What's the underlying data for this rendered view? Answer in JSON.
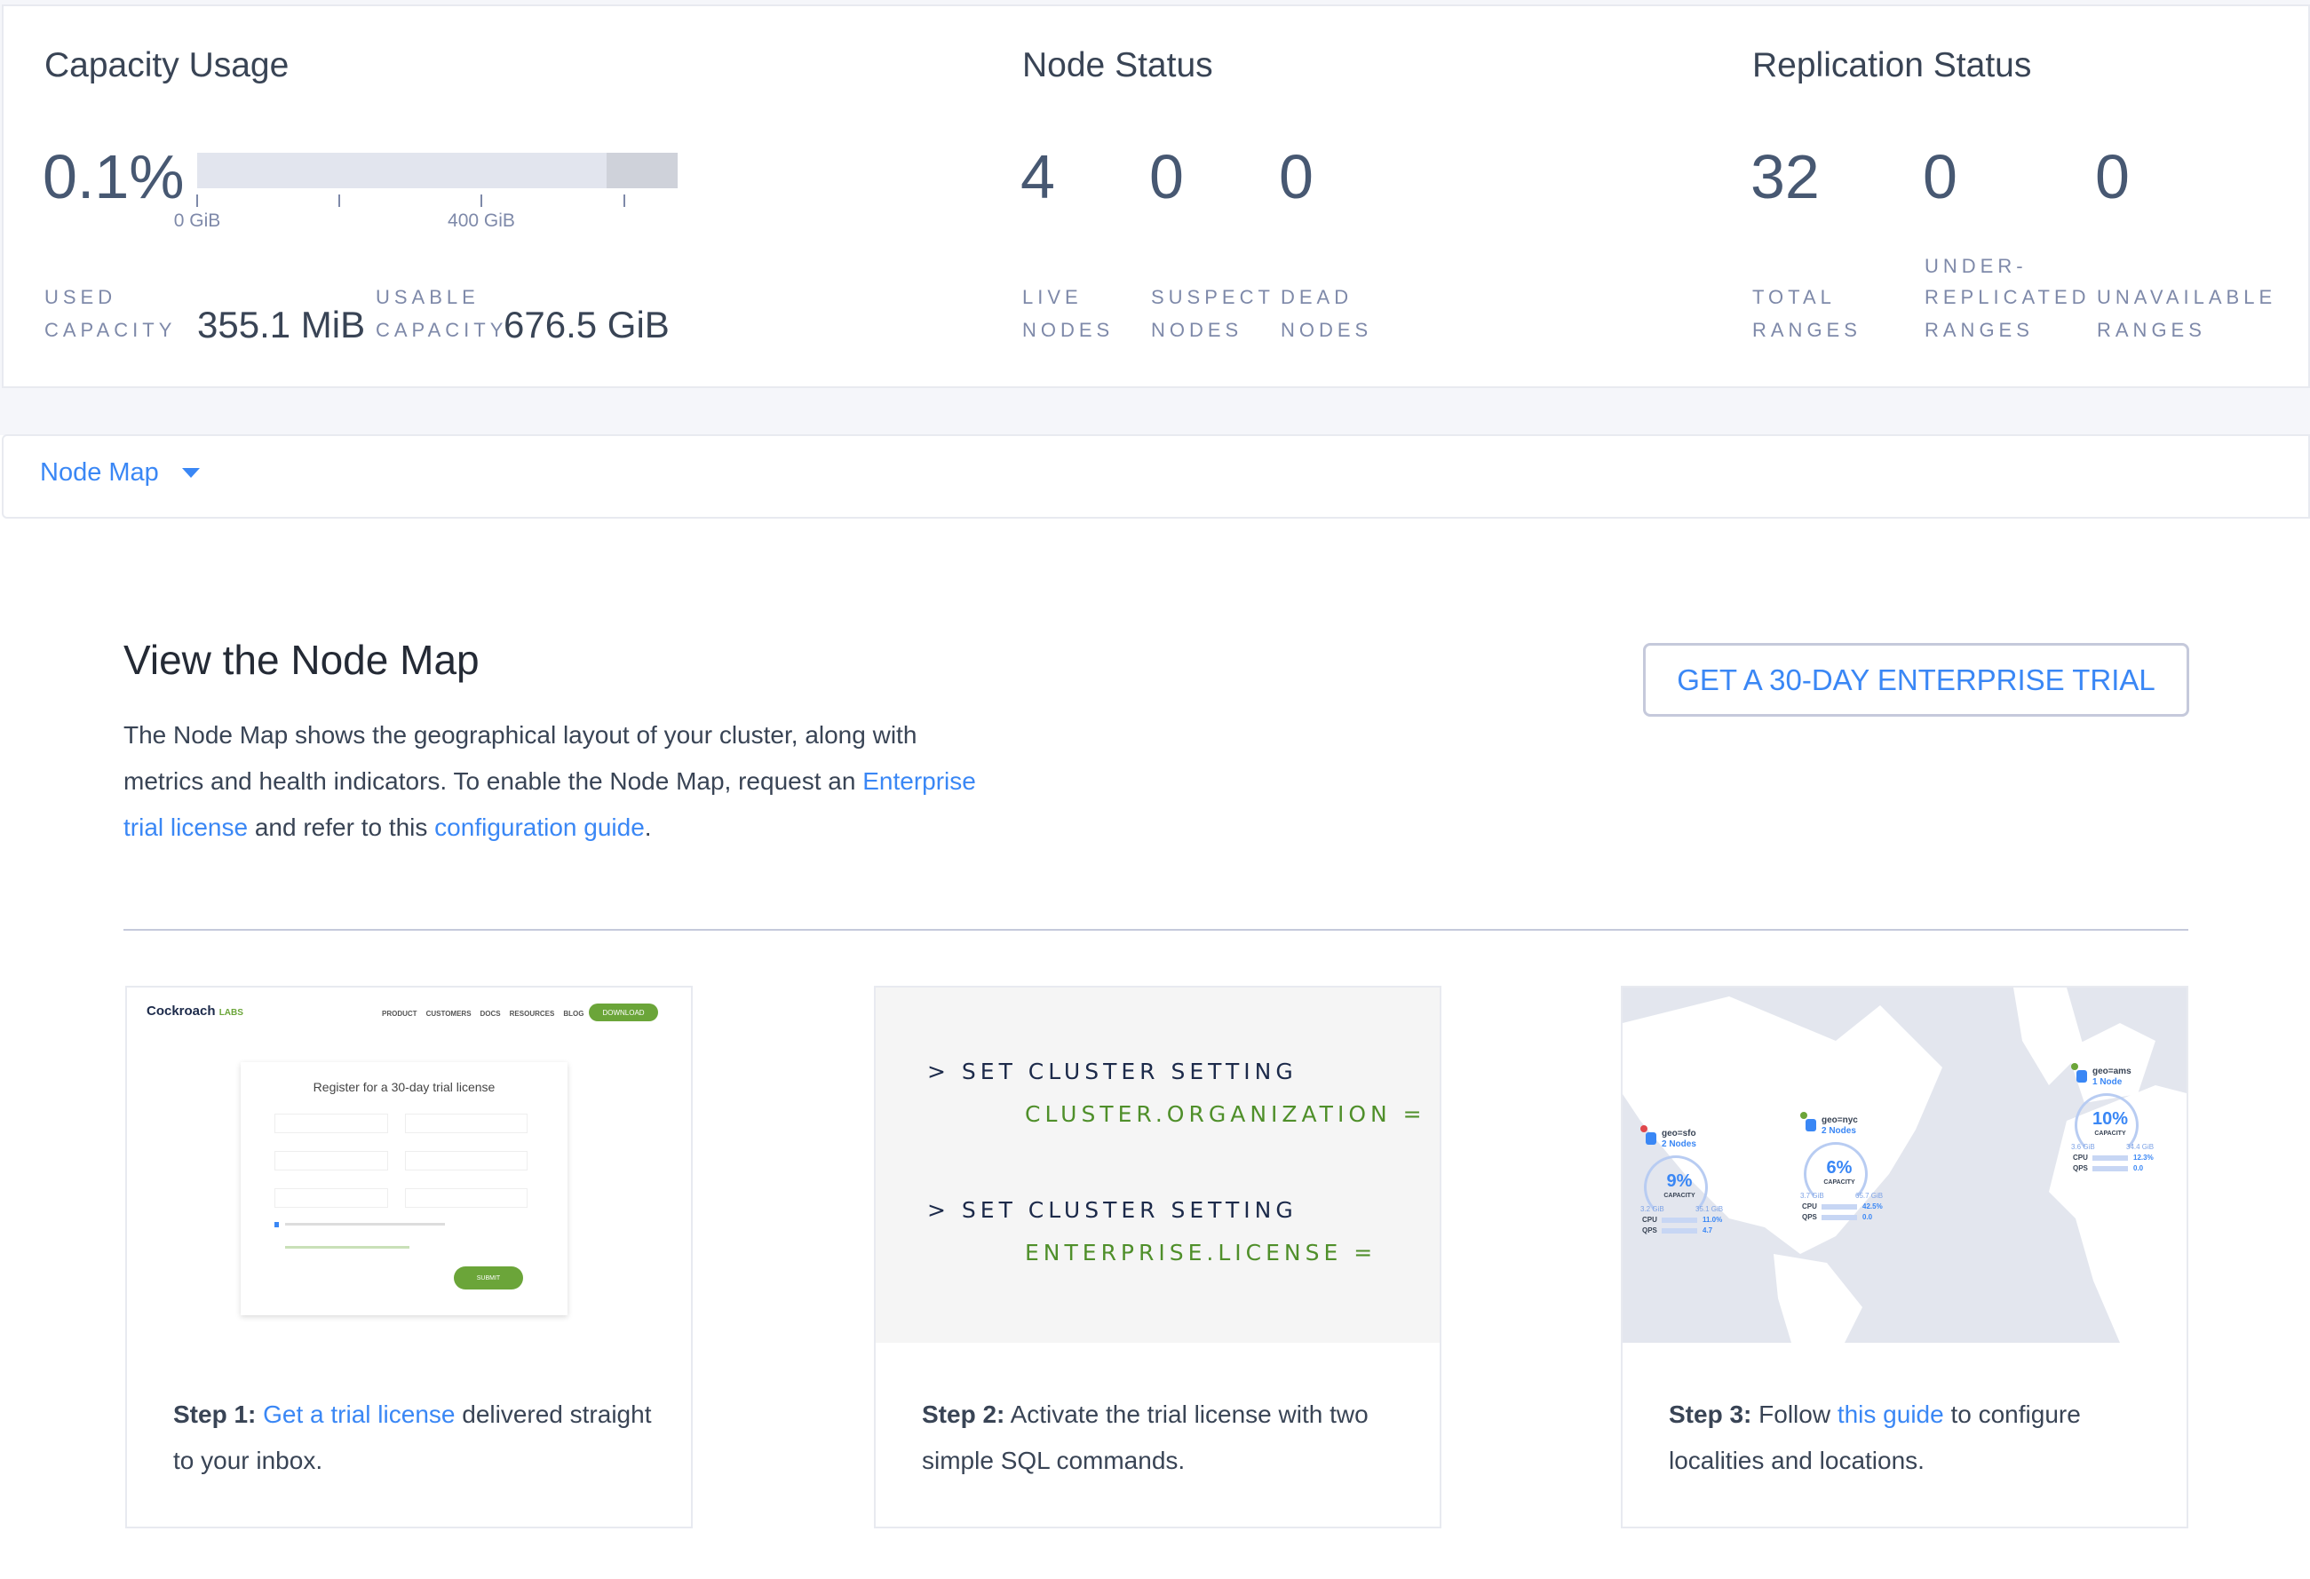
{
  "capacity": {
    "title": "Capacity Usage",
    "percent": "0.1%",
    "percent_value": 0.1,
    "bar_ticks": [
      "0 GiB",
      "400 GiB"
    ],
    "used_label_1": "USED",
    "used_label_2": "CAPACITY",
    "used_value": "355.1 MiB",
    "usable_label_1": "USABLE",
    "usable_label_2": "CAPACITY",
    "usable_value": "676.5 GiB"
  },
  "node_status": {
    "title": "Node Status",
    "items": [
      {
        "value": "4",
        "label_1": "LIVE",
        "label_2": "NODES"
      },
      {
        "value": "0",
        "label_1": "SUSPECT",
        "label_2": "NODES"
      },
      {
        "value": "0",
        "label_1": "DEAD",
        "label_2": "NODES"
      }
    ]
  },
  "replication": {
    "title": "Replication Status",
    "items": [
      {
        "value": "32",
        "label_1": "TOTAL",
        "label_2": "RANGES"
      },
      {
        "value": "0",
        "label_0": "UNDER-",
        "label_1": "REPLICATED",
        "label_2": "RANGES"
      },
      {
        "value": "0",
        "label_1": "UNAVAILABLE",
        "label_2": "RANGES"
      }
    ]
  },
  "nav": {
    "selected": "Node Map",
    "icon": "caret-down-icon"
  },
  "main": {
    "title": "View the Node Map",
    "para_1": "The Node Map shows the geographical layout of your cluster, along with metrics and health indicators. To enable the Node Map, request an ",
    "link_1": "Enterprise trial license",
    "para_2": " and refer to this ",
    "link_2": "configuration guide",
    "para_3": ".",
    "trial_button": "GET A 30-DAY ENTERPRISE TRIAL"
  },
  "steps": [
    {
      "step": "Step 1:",
      "pre": " ",
      "link": "Get a trial license",
      "post": " delivered straight to your inbox."
    },
    {
      "step": "Step 2:",
      "pre": " Activate the trial license with two simple SQL commands.",
      "link": "",
      "post": ""
    },
    {
      "step": "Step 3:",
      "pre": " Follow ",
      "link": "this guide",
      "post": " to configure localities and locations."
    }
  ],
  "step1_image": {
    "brand": "Cockroach",
    "brand_suffix": "LABS",
    "menu": [
      "PRODUCT",
      "CUSTOMERS",
      "DOCS",
      "RESOURCES",
      "BLOG"
    ],
    "download": "DOWNLOAD",
    "form_title": "Register for a 30-day trial license",
    "submit": "SUBMIT"
  },
  "step2_code": {
    "prompt": ">",
    "line_1": "SET CLUSTER SETTING",
    "line_2": "CLUSTER.ORGANIZATION =",
    "line_3": "SET CLUSTER SETTING",
    "line_4": "ENTERPRISE.LICENSE ="
  },
  "step3_map": {
    "nodes": [
      {
        "name": "geo=sfo",
        "count": "2 Nodes",
        "pct": "9%",
        "cap": "CAPACITY",
        "used": "3.2 GiB",
        "total": "35.1 GiB",
        "cpu": "11.0%",
        "qps": "4.7",
        "status": "alert"
      },
      {
        "name": "geo=nyc",
        "count": "2 Nodes",
        "pct": "6%",
        "cap": "CAPACITY",
        "used": "3.7 GiB",
        "total": "65.7 GiB",
        "cpu": "42.5%",
        "qps": "0.0",
        "status": "ok"
      },
      {
        "name": "geo=ams",
        "count": "1 Node",
        "pct": "10%",
        "cap": "CAPACITY",
        "used": "3.6 GiB",
        "total": "34.4 GiB",
        "cpu": "12.3%",
        "qps": "0.0",
        "status": "ok"
      }
    ]
  },
  "colors": {
    "accent": "#3a87f5",
    "text": "#394455",
    "label": "#7e89a9",
    "code_green": "#4f8f2a",
    "code_dark": "#1c2a4a"
  }
}
